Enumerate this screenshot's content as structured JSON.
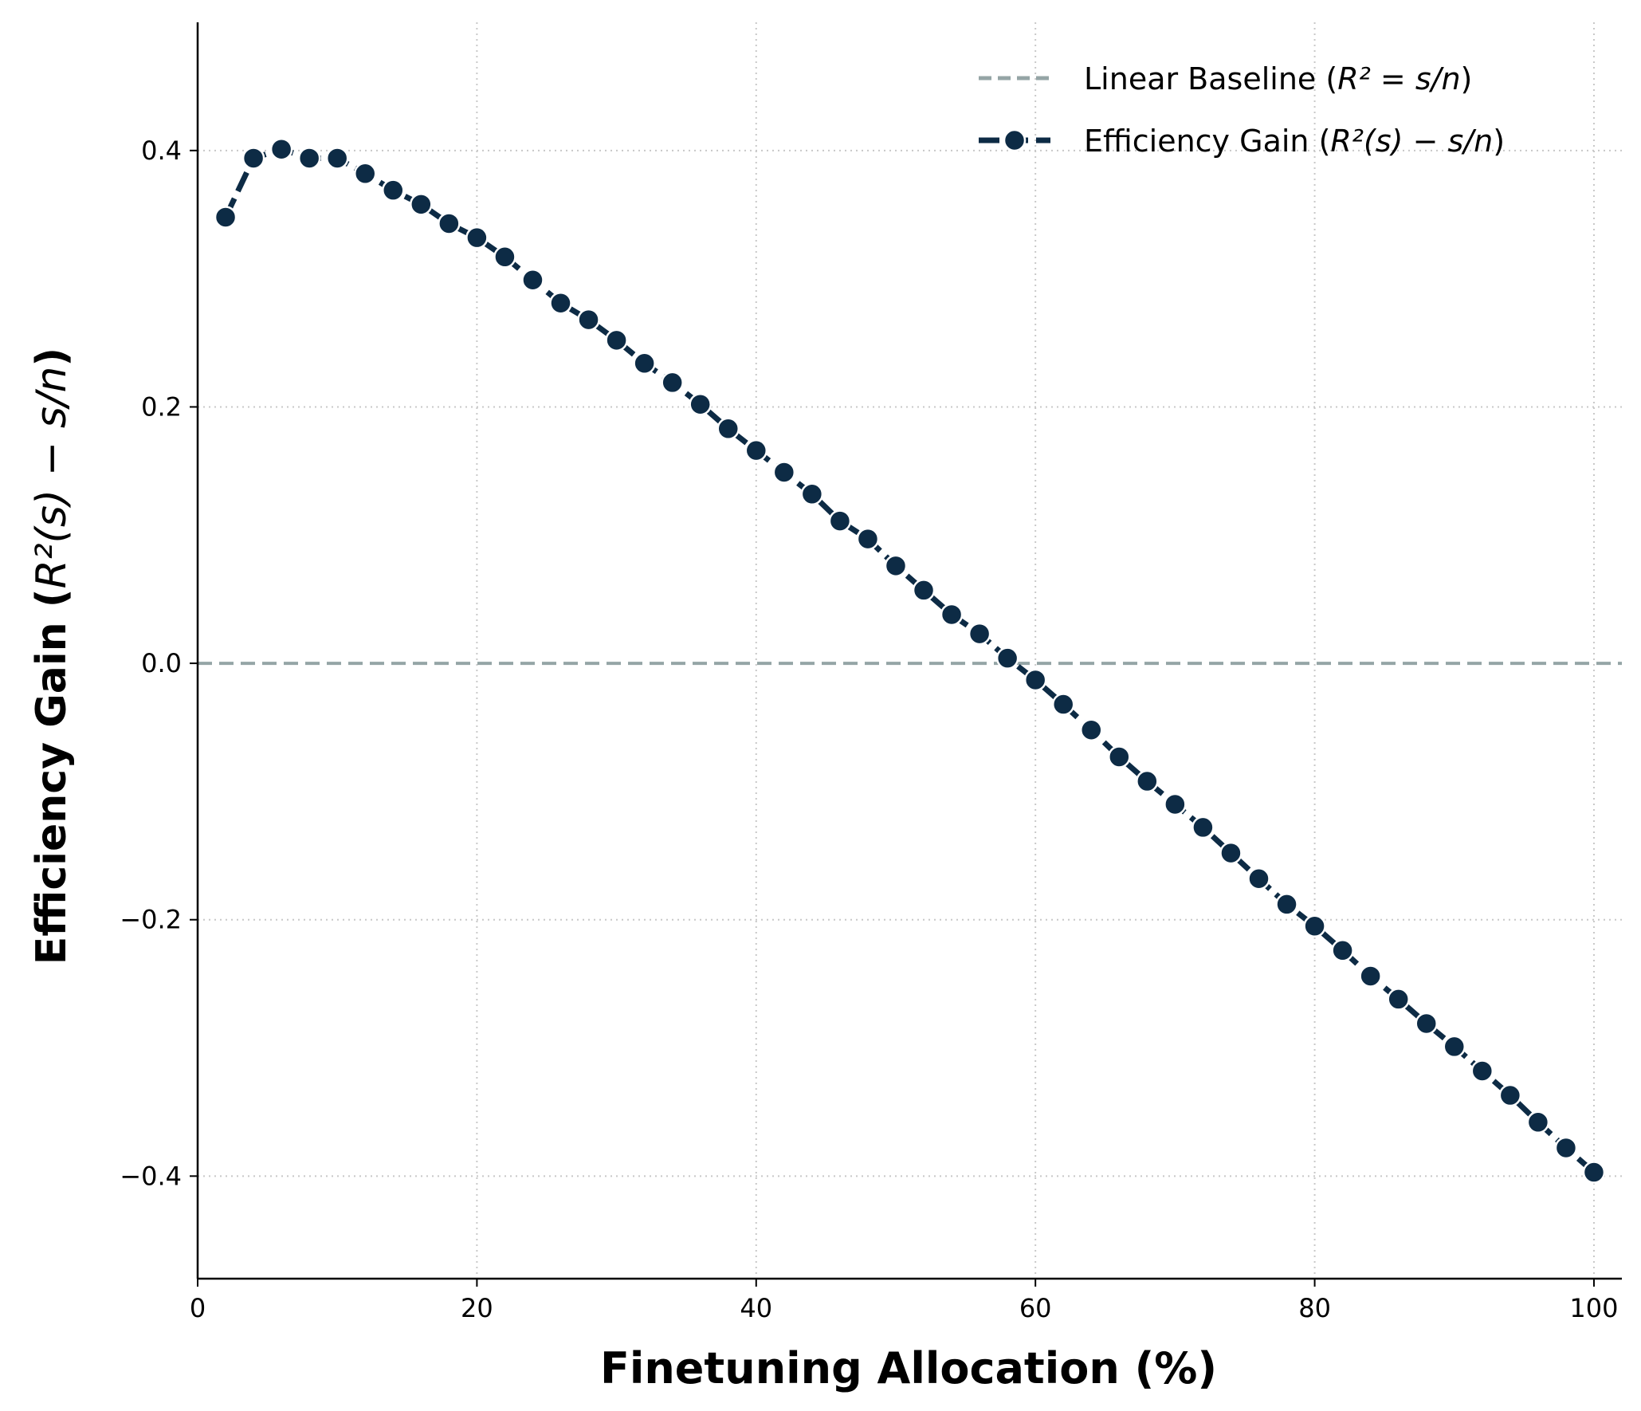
{
  "chart_data": {
    "type": "line",
    "title": "",
    "xlabel": "Finetuning Allocation (%)",
    "ylabel_main": "Efficiency Gain (",
    "ylabel_math": "R²(s) − s/n",
    "ylabel_close": ")",
    "xlim": [
      0,
      102
    ],
    "ylim": [
      -0.48,
      0.5
    ],
    "xticks": [
      0,
      20,
      40,
      60,
      80,
      100
    ],
    "xtick_labels": [
      "0",
      "20",
      "40",
      "60",
      "80",
      "100"
    ],
    "yticks": [
      -0.4,
      -0.2,
      0.0,
      0.2,
      0.4
    ],
    "ytick_labels": [
      "−0.4",
      "−0.2",
      "0.0",
      "0.2",
      "0.4"
    ],
    "grid": true,
    "legend_position": "top-right",
    "series": [
      {
        "name": "Linear Baseline (R² = s/n)",
        "legend_plain": "Linear Baseline (",
        "legend_math": "R² = s/n",
        "legend_close": ")",
        "style": "dashed",
        "color": "#95a5a6",
        "x": [
          0,
          102
        ],
        "y": [
          0,
          0
        ]
      },
      {
        "name": "Efficiency Gain (R²(s) − s/n)",
        "legend_plain": "Efficiency Gain (",
        "legend_math": "R²(s) − s/n",
        "legend_close": ")",
        "style": "dashed-markers",
        "color": "#0d2b45",
        "x": [
          2,
          4,
          6,
          8,
          10,
          12,
          14,
          16,
          18,
          20,
          22,
          24,
          26,
          28,
          30,
          32,
          34,
          36,
          38,
          40,
          42,
          44,
          46,
          48,
          50,
          52,
          54,
          56,
          58,
          60,
          62,
          64,
          66,
          68,
          70,
          72,
          74,
          76,
          78,
          80,
          82,
          84,
          86,
          88,
          90,
          92,
          94,
          96,
          98,
          100
        ],
        "y": [
          0.348,
          0.394,
          0.401,
          0.394,
          0.394,
          0.382,
          0.369,
          0.358,
          0.343,
          0.332,
          0.317,
          0.299,
          0.281,
          0.268,
          0.252,
          0.234,
          0.219,
          0.202,
          0.183,
          0.166,
          0.149,
          0.132,
          0.111,
          0.097,
          0.076,
          0.057,
          0.038,
          0.023,
          0.004,
          -0.013,
          -0.032,
          -0.052,
          -0.073,
          -0.092,
          -0.11,
          -0.128,
          -0.148,
          -0.168,
          -0.188,
          -0.205,
          -0.224,
          -0.244,
          -0.262,
          -0.281,
          -0.299,
          -0.318,
          -0.337,
          -0.358,
          -0.378,
          -0.397
        ]
      }
    ]
  }
}
